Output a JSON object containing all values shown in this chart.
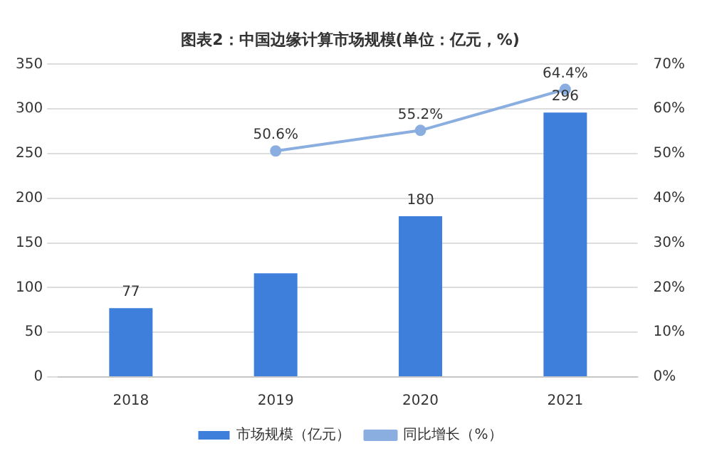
{
  "chart_data": {
    "type": "bar",
    "title": "图表2：中国边缘计算市场规模(单位：亿元，%)",
    "categories": [
      "2018",
      "2019",
      "2020",
      "2021"
    ],
    "series": [
      {
        "name": "市场规模（亿元）",
        "color": "#3f7fdc",
        "values": [
          77,
          116,
          180,
          296
        ],
        "value_labels": [
          "77",
          null,
          "180",
          "296"
        ]
      },
      {
        "name": "同比增长（%）",
        "type": "line",
        "axis": "y2",
        "color": "#8aaee0",
        "values": [
          null,
          50.6,
          55.2,
          64.4
        ],
        "value_labels": [
          null,
          "50.6%",
          "55.2%",
          "64.4%"
        ]
      }
    ],
    "ylim": [
      0,
      350
    ],
    "yticks": [
      0,
      50,
      100,
      150,
      200,
      250,
      300,
      350
    ],
    "y2lim": [
      0,
      70
    ],
    "y2ticks": [
      {
        "value": 0,
        "label": "0%"
      },
      {
        "value": 10,
        "label": "10%"
      },
      {
        "value": 20,
        "label": "20%"
      },
      {
        "value": 30,
        "label": "30%"
      },
      {
        "value": 40,
        "label": "40%"
      },
      {
        "value": 50,
        "label": "50%"
      },
      {
        "value": 60,
        "label": "60%"
      },
      {
        "value": 70,
        "label": "70%"
      }
    ],
    "grid": "y",
    "legend": "bottom",
    "marker": "circle",
    "line_style": "solid"
  }
}
